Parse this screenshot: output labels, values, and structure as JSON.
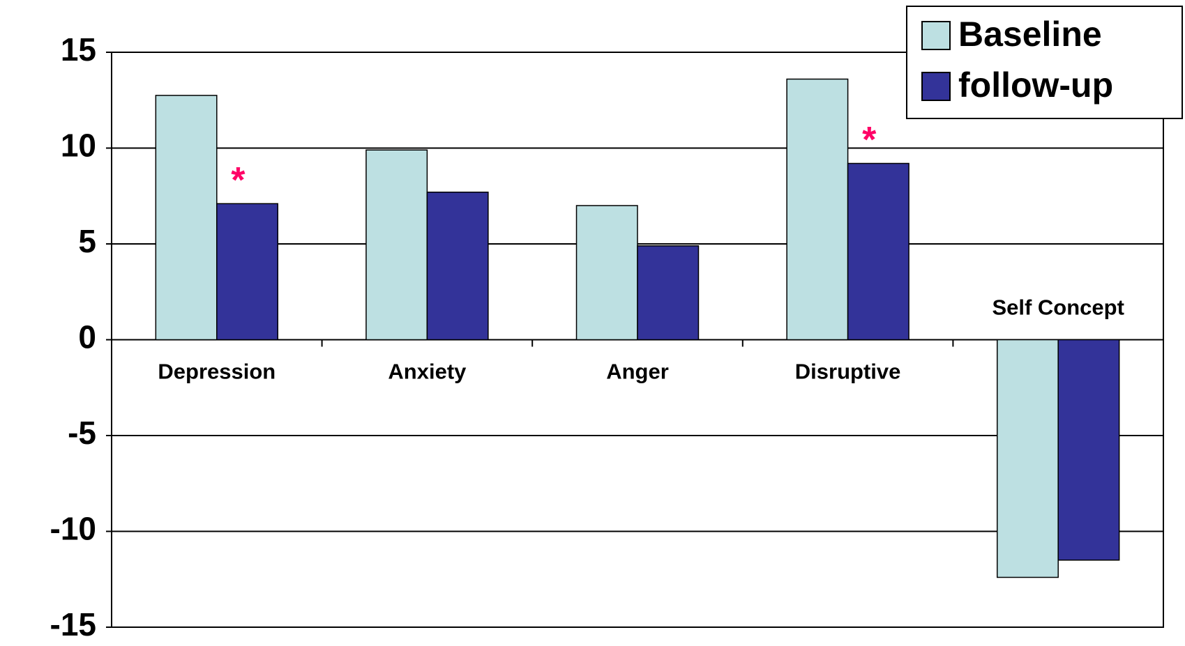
{
  "chart_data": {
    "type": "bar",
    "categories": [
      "Depression",
      "Anxiety",
      "Anger",
      "Disruptive",
      "Self Concept"
    ],
    "series": [
      {
        "name": "Baseline",
        "color": "#bde0e2",
        "values": [
          12.75,
          9.9,
          7.0,
          13.6,
          -12.4
        ]
      },
      {
        "name": "follow-up",
        "color": "#333399",
        "values": [
          7.1,
          7.7,
          4.9,
          9.2,
          -11.5
        ]
      }
    ],
    "ylim": [
      -15,
      15
    ],
    "yticks": [
      -15,
      -10,
      -5,
      0,
      5,
      10,
      15
    ],
    "grid": true,
    "legend": "top-right",
    "annotations": [
      {
        "text": "*",
        "category": "Depression",
        "color": "#ff0066"
      },
      {
        "text": "*",
        "category": "Disruptive",
        "color": "#ff0066"
      }
    ]
  }
}
